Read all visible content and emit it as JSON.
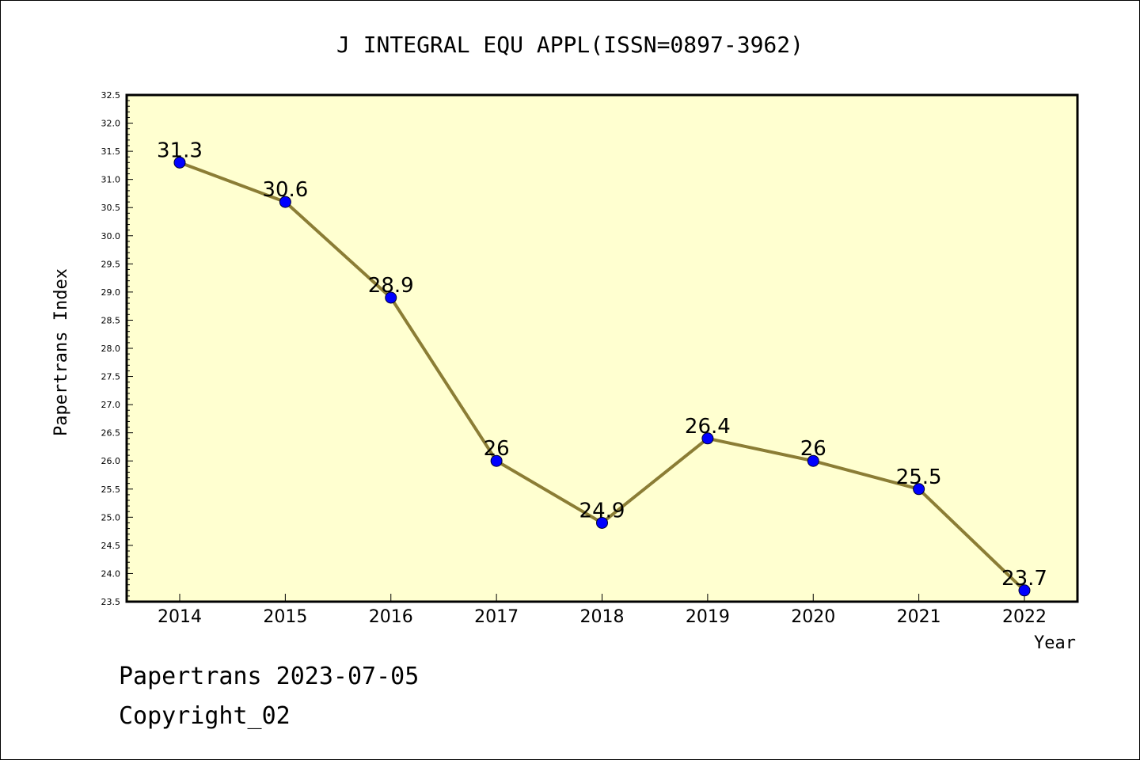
{
  "chart_data": {
    "type": "line",
    "title": "J INTEGRAL EQU APPL(ISSN=0897-3962)",
    "xlabel": "Year",
    "ylabel": "Papertrans Index",
    "categories": [
      "2014",
      "2015",
      "2016",
      "2017",
      "2018",
      "2019",
      "2020",
      "2021",
      "2022"
    ],
    "series": [
      {
        "values": [
          31.3,
          30.6,
          28.9,
          26.0,
          24.9,
          26.4,
          26.0,
          25.5,
          23.7
        ],
        "labels": [
          "31.3",
          "30.6",
          "28.9",
          "26",
          "24.9",
          "26.4",
          "26",
          "25.5",
          "23.7"
        ]
      }
    ],
    "ylim": [
      23.5,
      32.5
    ],
    "yticks": [
      "23.5",
      "24.0",
      "24.5",
      "25.0",
      "25.5",
      "26.0",
      "26.5",
      "27.0",
      "27.5",
      "28.0",
      "28.5",
      "29.0",
      "29.5",
      "30.0",
      "30.5",
      "31.0",
      "31.5",
      "32.0",
      "32.5"
    ],
    "grid": false,
    "colors": {
      "plot_background": "#ffffd0",
      "line": "#8b7d35",
      "marker": "#0000ff",
      "axis": "#000000"
    }
  },
  "footer": {
    "line1": "Papertrans 2023-07-05",
    "line2": "Copyright_02"
  }
}
